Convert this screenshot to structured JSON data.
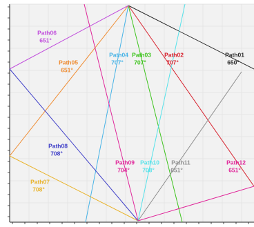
{
  "colors": {
    "background": "#ffffff",
    "plot_fill": "#f2f2f2",
    "grid": "#dcdcdc",
    "frame": "#222222"
  },
  "paths": [
    {
      "id": "path01",
      "name": "Path01",
      "angle": "650°",
      "color": "#2b2b2b"
    },
    {
      "id": "path02",
      "name": "Path02",
      "angle": "707°",
      "color": "#d7232f"
    },
    {
      "id": "path03",
      "name": "Path03",
      "angle": "707°",
      "color": "#3fc41f"
    },
    {
      "id": "path04",
      "name": "Path04",
      "angle": "707°",
      "color": "#47b3e6"
    },
    {
      "id": "path05",
      "name": "Path05",
      "angle": "651°",
      "color": "#ef8b30"
    },
    {
      "id": "path06",
      "name": "Path06",
      "angle": "651°",
      "color": "#c150dc"
    },
    {
      "id": "path07",
      "name": "Path07",
      "angle": "708°",
      "color": "#e9b42e"
    },
    {
      "id": "path08",
      "name": "Path08",
      "angle": "708°",
      "color": "#4040c8"
    },
    {
      "id": "path09",
      "name": "Path09",
      "angle": "704°",
      "color": "#e0279a"
    },
    {
      "id": "path10",
      "name": "Path10",
      "angle": "708°",
      "color": "#56e2ea"
    },
    {
      "id": "path11",
      "name": "Path11",
      "angle": "651°",
      "color": "#8f8f8f"
    },
    {
      "id": "path12",
      "name": "Path12",
      "angle": "651°",
      "color": "#e0279a"
    }
  ]
}
